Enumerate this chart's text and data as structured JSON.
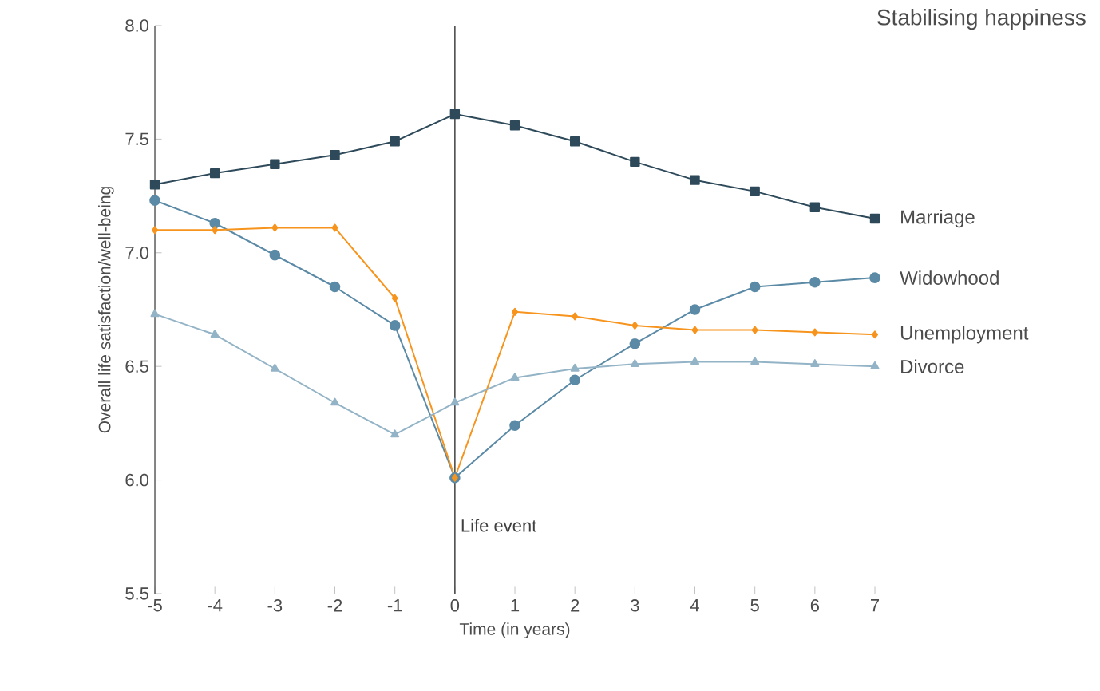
{
  "chart_data": {
    "type": "line",
    "title": "Stabilising happiness",
    "xlabel": "Time (in years)",
    "ylabel": "Overall life satisfaction/well-being",
    "x": [
      -5,
      -4,
      -3,
      -2,
      -1,
      0,
      1,
      2,
      3,
      4,
      5,
      6,
      7
    ],
    "xlim": [
      -5,
      7
    ],
    "xticks": [
      -5,
      -4,
      -3,
      -2,
      -1,
      0,
      1,
      2,
      3,
      4,
      5,
      6,
      7
    ],
    "ylim": [
      5.5,
      8.0
    ],
    "yticks": [
      {
        "value": 5.5,
        "label": "5.5"
      },
      {
        "value": 6,
        "label": "6.0"
      },
      {
        "value": 6.5,
        "label": "6.5"
      },
      {
        "value": 7,
        "label": "7.0"
      },
      {
        "value": 7.5,
        "label": "7.5"
      },
      {
        "value": 8,
        "label": "8.0"
      }
    ],
    "grid": false,
    "legend": false,
    "line_style": "solid",
    "ref_lines": [
      {
        "axis": "x",
        "value": 0,
        "label": "Life event",
        "color": "#4d4d4d"
      }
    ],
    "series": [
      {
        "name": "Marriage",
        "color": "#2e4a5a",
        "marker": "square",
        "values": [
          7.3,
          7.35,
          7.39,
          7.43,
          7.49,
          7.61,
          7.56,
          7.49,
          7.4,
          7.32,
          7.27,
          7.2,
          7.15
        ]
      },
      {
        "name": "Widowhood",
        "color": "#5b8aa6",
        "marker": "circle",
        "values": [
          7.23,
          7.13,
          6.99,
          6.85,
          6.68,
          6.01,
          6.24,
          6.44,
          6.6,
          6.75,
          6.85,
          6.87,
          6.89
        ]
      },
      {
        "name": "Unemployment",
        "color": "#f7941d",
        "marker": "diamond",
        "values": [
          7.1,
          7.1,
          7.11,
          7.11,
          6.8,
          6.01,
          6.74,
          6.72,
          6.68,
          6.66,
          6.66,
          6.65,
          6.64
        ]
      },
      {
        "name": "Divorce",
        "color": "#93b3c6",
        "marker": "triangle",
        "values": [
          6.73,
          6.64,
          6.49,
          6.34,
          6.2,
          6.34,
          6.45,
          6.49,
          6.51,
          6.52,
          6.52,
          6.51,
          6.5
        ]
      }
    ]
  }
}
